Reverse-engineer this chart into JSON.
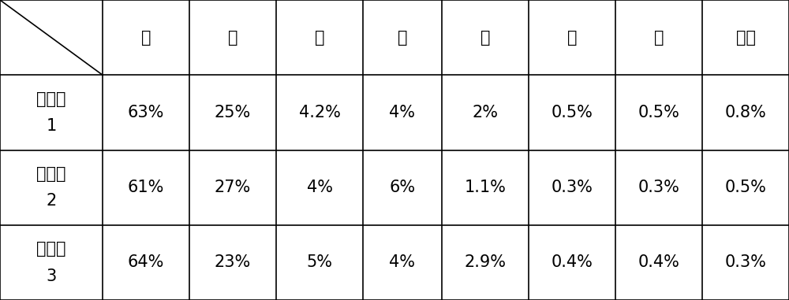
{
  "header_cols": [
    "钔",
    "铬",
    "钒",
    "錨",
    "硅",
    "鐵",
    "碳",
    "杂质"
  ],
  "row_label_line1": [
    "实施例",
    "实施例",
    "实施例"
  ],
  "row_label_line2": [
    "1",
    "2",
    "3"
  ],
  "table_data": [
    [
      "63%",
      "25%",
      "4.2%",
      "4%",
      "2%",
      "0.5%",
      "0.5%",
      "0.8%"
    ],
    [
      "61%",
      "27%",
      "4%",
      "6%",
      "1.1%",
      "0.3%",
      "0.3%",
      "0.5%"
    ],
    [
      "64%",
      "23%",
      "5%",
      "4%",
      "2.9%",
      "0.4%",
      "0.4%",
      "0.3%"
    ]
  ],
  "col_widths_rel": [
    1.3,
    1.1,
    1.1,
    1.1,
    1.0,
    1.1,
    1.1,
    1.1,
    1.1
  ],
  "bg_color": "#ffffff",
  "border_color": "#000000",
  "text_color": "#000000",
  "font_size": 15,
  "fig_width": 10.0,
  "fig_height": 3.81,
  "dpi": 100
}
